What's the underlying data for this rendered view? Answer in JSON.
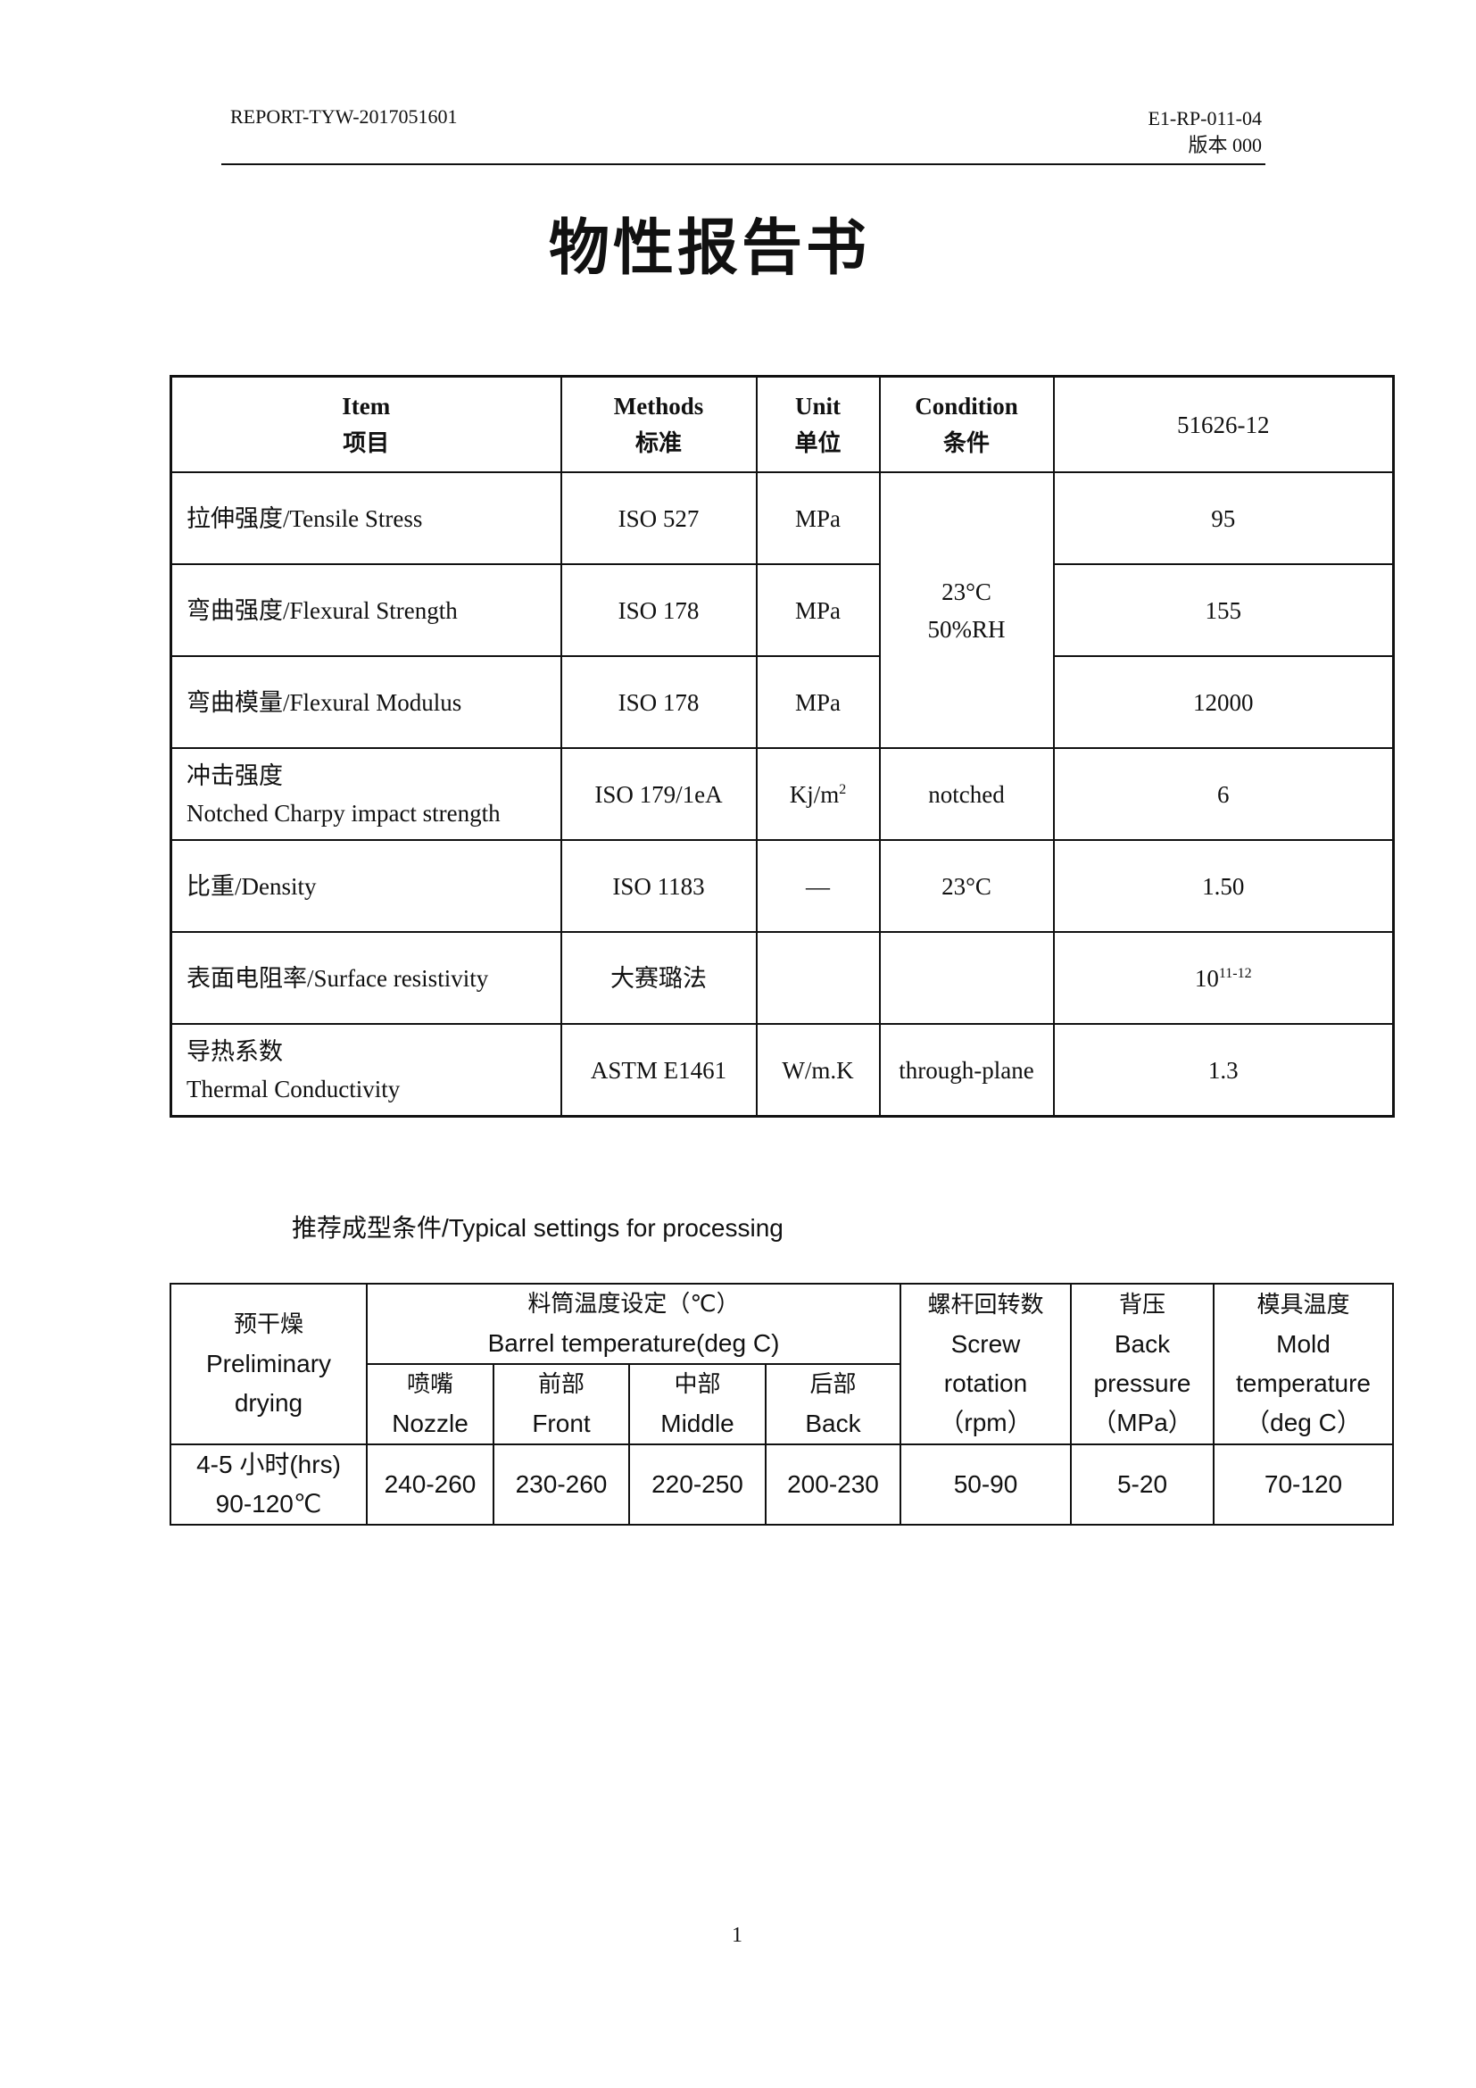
{
  "header": {
    "report_no": "REPORT-TYW-2017051601",
    "doc_code": "E1-RP-011-04",
    "version": "版本 000"
  },
  "title": "物性报告书",
  "properties_table": {
    "headers": [
      {
        "en": "Item",
        "zh": "项目"
      },
      {
        "en": "Methods",
        "zh": "标准"
      },
      {
        "en": "Unit",
        "zh": "单位"
      },
      {
        "en": "Condition",
        "zh": "条件"
      },
      {
        "en": "51626-12"
      }
    ],
    "shared_condition": [
      "23°C",
      "50%RH"
    ],
    "rows": [
      {
        "item": "拉伸强度/Tensile Stress",
        "method": "ISO 527",
        "unit": "MPa",
        "value": "95"
      },
      {
        "item": "弯曲强度/Flexural Strength",
        "method": "ISO 178",
        "unit": "MPa",
        "value": "155"
      },
      {
        "item": "弯曲模量/Flexural Modulus",
        "method": "ISO 178",
        "unit": "MPa",
        "value": "12000"
      },
      {
        "item_zh": "冲击强度",
        "item_en": "Notched Charpy impact strength",
        "method": "ISO 179/1eA",
        "unit": "Kj/m",
        "unit_sup": "2",
        "condition": "notched",
        "value": "6"
      },
      {
        "item": "比重/Density",
        "method": "ISO 1183",
        "unit": "—",
        "condition": "23°C",
        "value": "1.50"
      },
      {
        "item": "表面电阻率/Surface resistivity",
        "method": "大赛璐法",
        "unit": "",
        "condition": "",
        "value": "10",
        "value_sup": "11-12"
      },
      {
        "item_zh": "导热系数",
        "item_en": "Thermal Conductivity",
        "method": "ASTM E1461",
        "unit": "W/m.K",
        "condition": "through-plane",
        "value": "1.3"
      }
    ]
  },
  "processing": {
    "subtitle": "推荐成型条件/Typical settings for processing",
    "headers": {
      "drying": {
        "zh": "预干燥",
        "en1": "Preliminary",
        "en2": "drying"
      },
      "barrel": {
        "zh": "料筒温度设定（℃）",
        "en": "Barrel temperature(deg C)"
      },
      "zones": [
        {
          "zh": "喷嘴",
          "en": "Nozzle"
        },
        {
          "zh": "前部",
          "en": "Front"
        },
        {
          "zh": "中部",
          "en": "Middle"
        },
        {
          "zh": "后部",
          "en": "Back"
        }
      ],
      "screw": {
        "zh": "螺杆回转数",
        "en1": "Screw",
        "en2": "rotation",
        "unit": "（rpm）"
      },
      "back": {
        "zh": "背压",
        "en1": "Back",
        "en2": "pressure",
        "unit": "（MPa）"
      },
      "mold": {
        "zh": "模具温度",
        "en1": "Mold",
        "en2": "temperature",
        "unit": "（deg C）"
      }
    },
    "values": {
      "drying1": "4-5 小时(hrs)",
      "drying2": "90-120℃",
      "zones": [
        "240-260",
        "230-260",
        "220-250",
        "200-230"
      ],
      "screw": "50-90",
      "back": "5-20",
      "mold": "70-120"
    }
  },
  "page_number": "1"
}
